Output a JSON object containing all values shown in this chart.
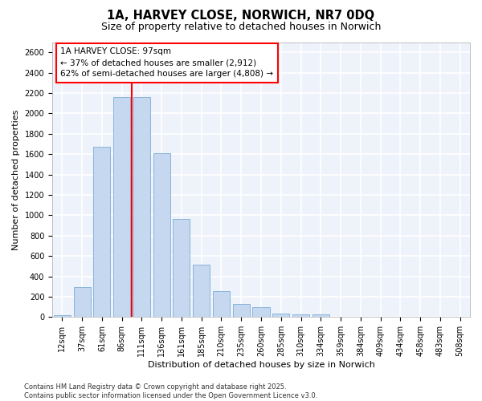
{
  "title": "1A, HARVEY CLOSE, NORWICH, NR7 0DQ",
  "subtitle": "Size of property relative to detached houses in Norwich",
  "xlabel": "Distribution of detached houses by size in Norwich",
  "ylabel": "Number of detached properties",
  "categories": [
    "12sqm",
    "37sqm",
    "61sqm",
    "86sqm",
    "111sqm",
    "136sqm",
    "161sqm",
    "185sqm",
    "210sqm",
    "235sqm",
    "260sqm",
    "285sqm",
    "310sqm",
    "334sqm",
    "359sqm",
    "384sqm",
    "409sqm",
    "434sqm",
    "458sqm",
    "483sqm",
    "508sqm"
  ],
  "values": [
    20,
    295,
    1670,
    2160,
    2160,
    1610,
    965,
    515,
    255,
    125,
    100,
    35,
    25,
    25,
    5,
    5,
    5,
    2,
    2,
    2,
    5
  ],
  "bar_color": "#c5d8f0",
  "bar_edge_color": "#7aadd4",
  "background_color": "#eef2fb",
  "grid_color": "#ffffff",
  "vline_color": "red",
  "vline_x": 3.5,
  "annotation_line1": "1A HARVEY CLOSE: 97sqm",
  "annotation_line2": "← 37% of detached houses are smaller (2,912)",
  "annotation_line3": "62% of semi-detached houses are larger (4,808) →",
  "ylim": [
    0,
    2700
  ],
  "yticks": [
    0,
    200,
    400,
    600,
    800,
    1000,
    1200,
    1400,
    1600,
    1800,
    2000,
    2200,
    2400,
    2600
  ],
  "footer1": "Contains HM Land Registry data © Crown copyright and database right 2025.",
  "footer2": "Contains public sector information licensed under the Open Government Licence v3.0.",
  "title_fontsize": 10.5,
  "subtitle_fontsize": 9,
  "xlabel_fontsize": 8,
  "ylabel_fontsize": 8,
  "tick_fontsize": 7,
  "annotation_fontsize": 7.5,
  "footer_fontsize": 6
}
